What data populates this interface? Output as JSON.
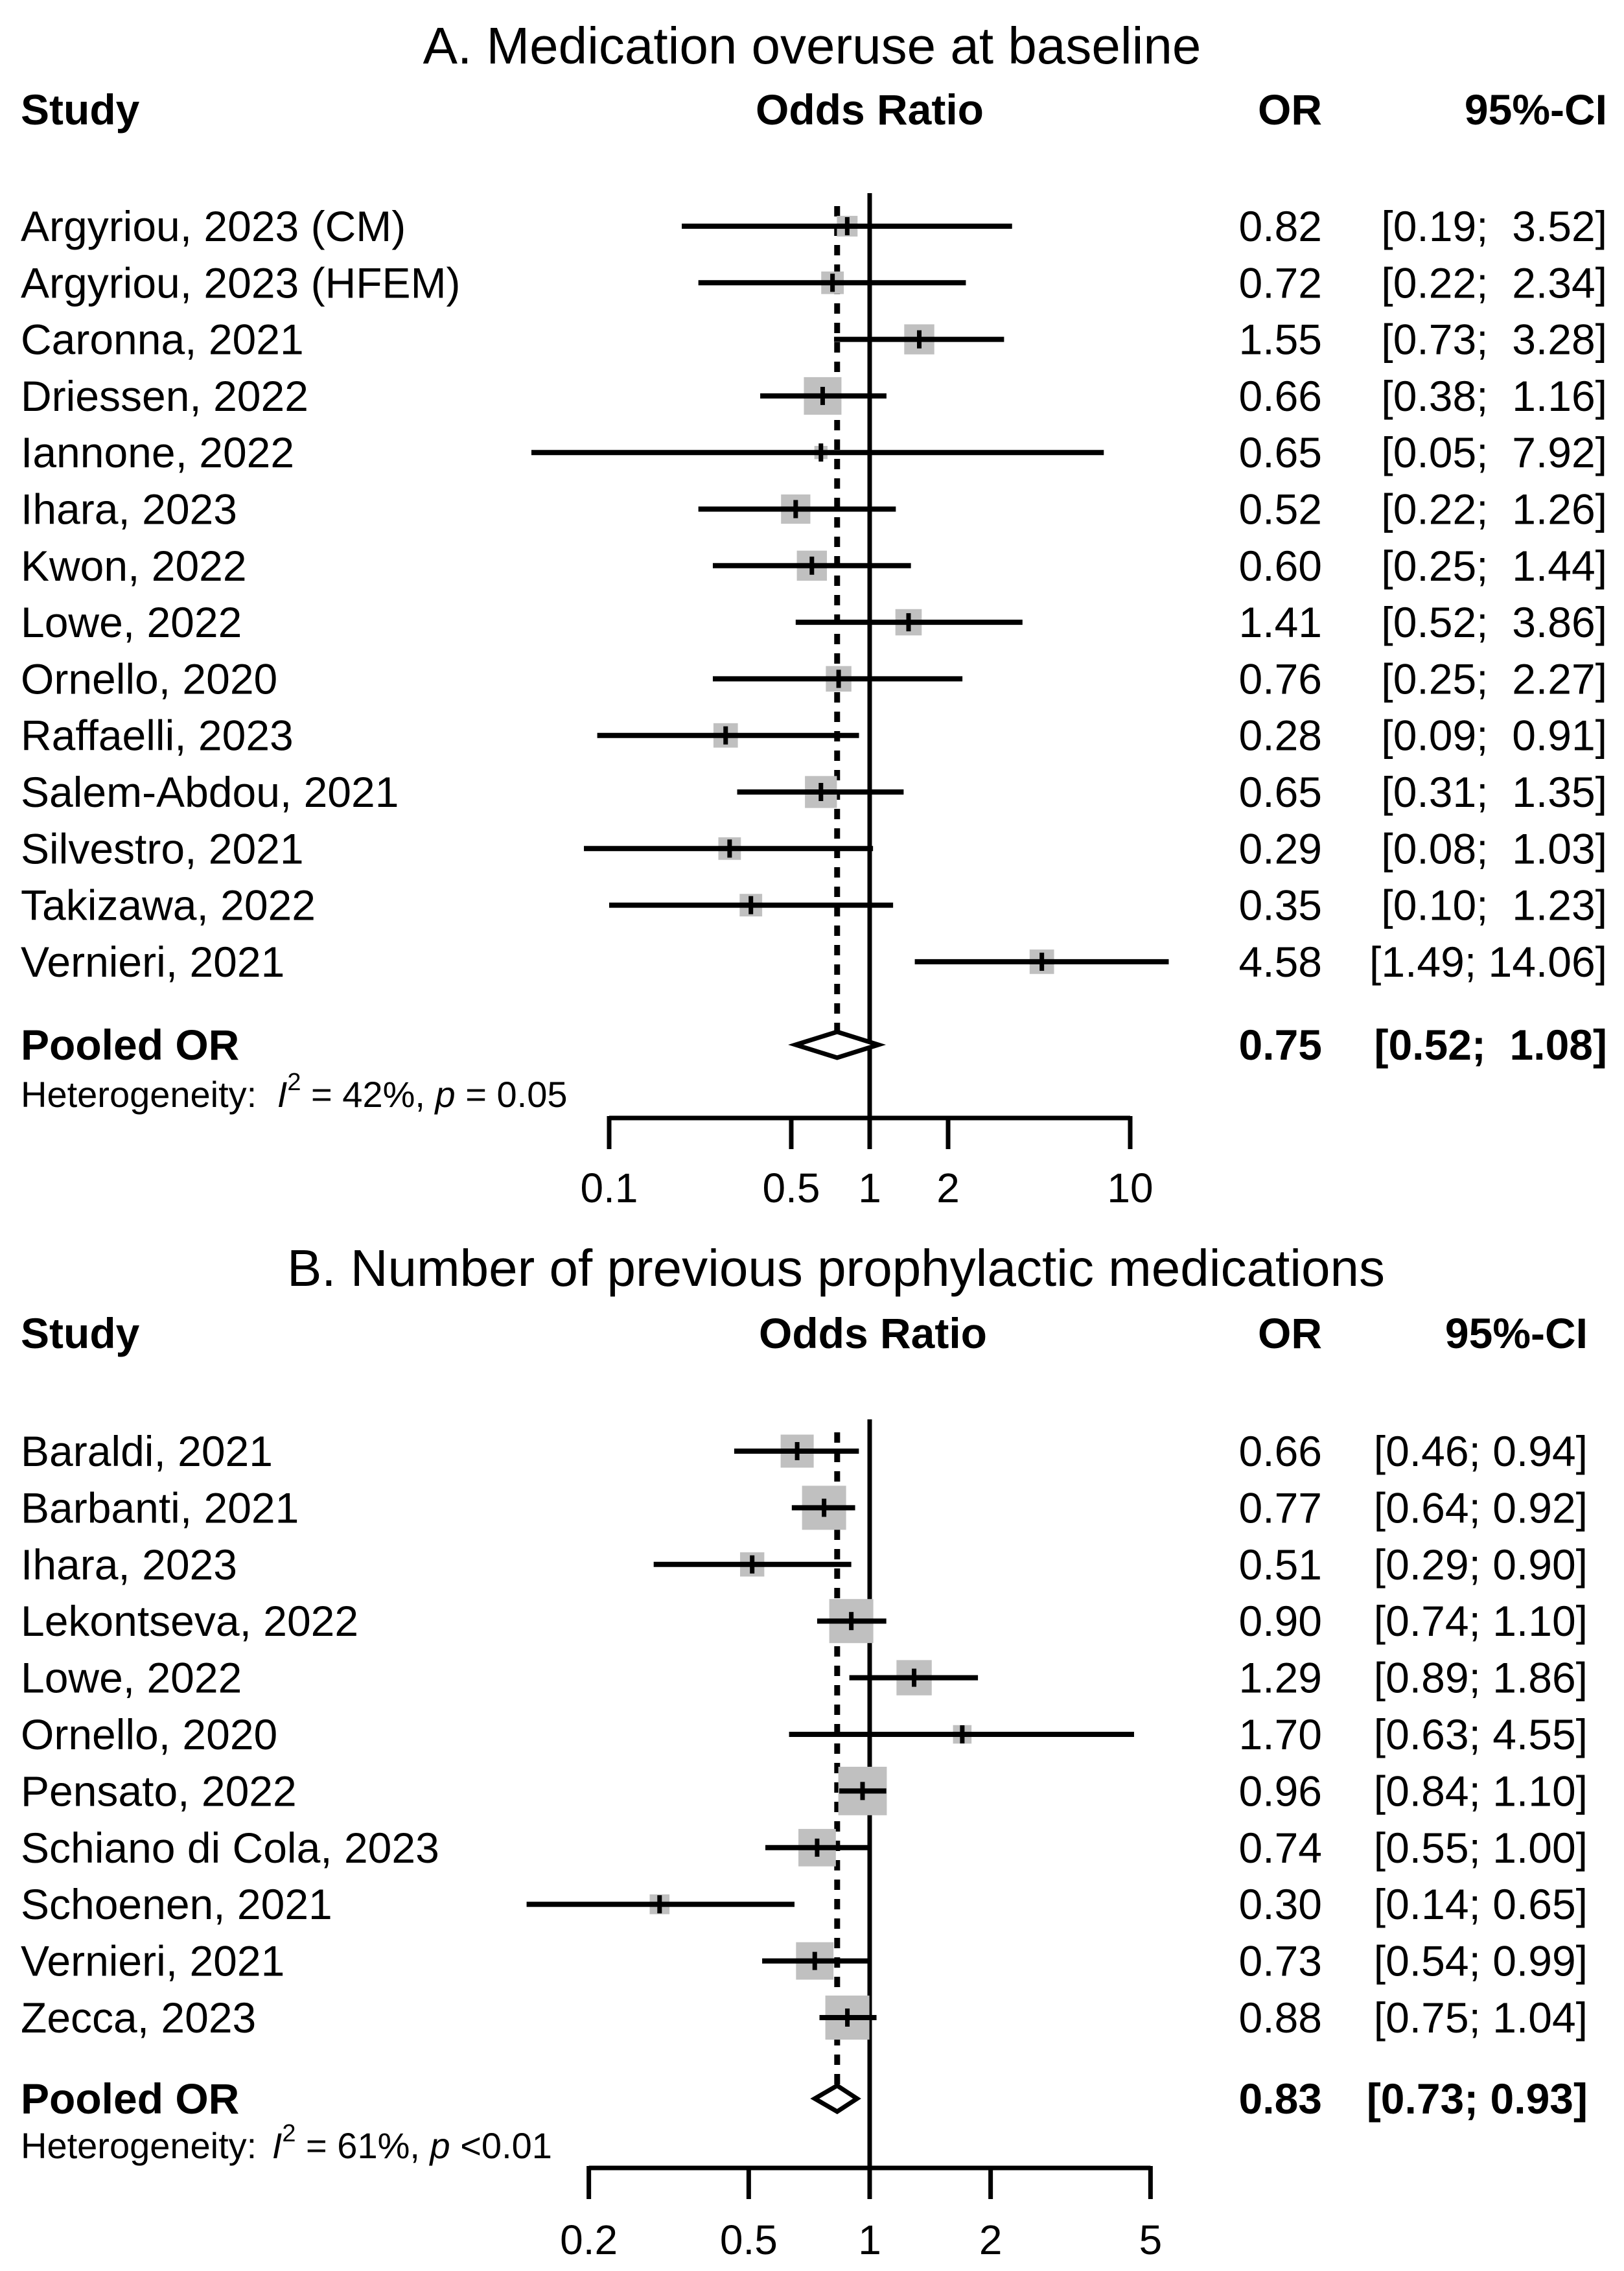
{
  "chart_data": [
    {
      "type": "forest",
      "title": "A. Medication overuse at baseline",
      "headers": {
        "study": "Study",
        "plot": "Odds Ratio",
        "or": "OR",
        "ci": "95%-CI"
      },
      "studies": [
        {
          "label": "Argyriou, 2023 (CM)",
          "or": 0.82,
          "lo": 0.19,
          "hi": 3.52,
          "or_text": "0.82",
          "ci_text": "[0.19;  3.52]",
          "weight": 0.55
        },
        {
          "label": "Argyriou, 2023 (HFEM)",
          "or": 0.72,
          "lo": 0.22,
          "hi": 2.34,
          "or_text": "0.72",
          "ci_text": "[0.22;  2.34]",
          "weight": 0.6
        },
        {
          "label": "Caronna, 2021",
          "or": 1.55,
          "lo": 0.73,
          "hi": 3.28,
          "or_text": "1.55",
          "ci_text": "[0.73;  3.28]",
          "weight": 0.8
        },
        {
          "label": "Driessen, 2022",
          "or": 0.66,
          "lo": 0.38,
          "hi": 1.16,
          "or_text": "0.66",
          "ci_text": "[0.38;  1.16]",
          "weight": 1.0
        },
        {
          "label": "Iannone, 2022",
          "or": 0.65,
          "lo": 0.05,
          "hi": 7.92,
          "or_text": "0.65",
          "ci_text": "[0.05;  7.92]",
          "weight": 0.35
        },
        {
          "label": "Ihara, 2023",
          "or": 0.52,
          "lo": 0.22,
          "hi": 1.26,
          "or_text": "0.52",
          "ci_text": "[0.22;  1.26]",
          "weight": 0.78
        },
        {
          "label": "Kwon, 2022",
          "or": 0.6,
          "lo": 0.25,
          "hi": 1.44,
          "or_text": "0.60",
          "ci_text": "[0.25;  1.44]",
          "weight": 0.8
        },
        {
          "label": "Lowe, 2022",
          "or": 1.41,
          "lo": 0.52,
          "hi": 3.86,
          "or_text": "1.41",
          "ci_text": "[0.52;  3.86]",
          "weight": 0.7
        },
        {
          "label": "Ornello, 2020",
          "or": 0.76,
          "lo": 0.25,
          "hi": 2.27,
          "or_text": "0.76",
          "ci_text": "[0.25;  2.27]",
          "weight": 0.68
        },
        {
          "label": "Raffaelli, 2023",
          "or": 0.28,
          "lo": 0.09,
          "hi": 0.91,
          "or_text": "0.28",
          "ci_text": "[0.09;  0.91]",
          "weight": 0.65
        },
        {
          "label": "Salem-Abdou, 2021",
          "or": 0.65,
          "lo": 0.31,
          "hi": 1.35,
          "or_text": "0.65",
          "ci_text": "[0.31;  1.35]",
          "weight": 0.85
        },
        {
          "label": "Silvestro, 2021",
          "or": 0.29,
          "lo": 0.08,
          "hi": 1.03,
          "or_text": "0.29",
          "ci_text": "[0.08;  1.03]",
          "weight": 0.6
        },
        {
          "label": "Takizawa, 2022",
          "or": 0.35,
          "lo": 0.1,
          "hi": 1.23,
          "or_text": "0.35",
          "ci_text": "[0.10;  1.23]",
          "weight": 0.6
        },
        {
          "label": "Vernieri, 2021",
          "or": 4.58,
          "lo": 1.49,
          "hi": 14.06,
          "or_text": "4.58",
          "ci_text": "[1.49; 14.06]",
          "weight": 0.65
        }
      ],
      "pooled": {
        "label": "Pooled OR",
        "or": 0.75,
        "lo": 0.52,
        "hi": 1.08,
        "or_text": "0.75",
        "ci_text": "[0.52;  1.08]"
      },
      "heterogeneity": {
        "prefix": "Heterogeneity:",
        "i2_symbol": "I",
        "i2_sup": "2",
        "i2_value": " = 42%, ",
        "p_symbol": "p",
        "p_value": " = 0.05"
      },
      "axis": {
        "scale": "log",
        "min": 0.1,
        "max": 10,
        "ticks": [
          0.1,
          0.5,
          1,
          2,
          10
        ],
        "tick_labels": [
          "0.1",
          "0.5",
          "1",
          "2",
          "10"
        ]
      }
    },
    {
      "type": "forest",
      "title": "B. Number of previous prophylactic medications",
      "headers": {
        "study": "Study",
        "plot": "Odds Ratio",
        "or": "OR",
        "ci": "95%-CI"
      },
      "studies": [
        {
          "label": "Baraldi, 2021",
          "or": 0.66,
          "lo": 0.46,
          "hi": 0.94,
          "or_text": "0.66",
          "ci_text": "[0.46; 0.94]",
          "weight": 0.75
        },
        {
          "label": "Barbanti, 2021",
          "or": 0.77,
          "lo": 0.64,
          "hi": 0.92,
          "or_text": "0.77",
          "ci_text": "[0.64; 0.92]",
          "weight": 1.0
        },
        {
          "label": "Ihara, 2023",
          "or": 0.51,
          "lo": 0.29,
          "hi": 0.9,
          "or_text": "0.51",
          "ci_text": "[0.29; 0.90]",
          "weight": 0.55
        },
        {
          "label": "Lekontseva, 2022",
          "or": 0.9,
          "lo": 0.74,
          "hi": 1.1,
          "or_text": "0.90",
          "ci_text": "[0.74; 1.10]",
          "weight": 1.0
        },
        {
          "label": "Lowe, 2022",
          "or": 1.29,
          "lo": 0.89,
          "hi": 1.86,
          "or_text": "1.29",
          "ci_text": "[0.89; 1.86]",
          "weight": 0.8
        },
        {
          "label": "Ornello, 2020",
          "or": 1.7,
          "lo": 0.63,
          "hi": 4.55,
          "or_text": "1.70",
          "ci_text": "[0.63; 4.55]",
          "weight": 0.42
        },
        {
          "label": "Pensato, 2022",
          "or": 0.96,
          "lo": 0.84,
          "hi": 1.1,
          "or_text": "0.96",
          "ci_text": "[0.84; 1.10]",
          "weight": 1.1
        },
        {
          "label": "Schiano di Cola, 2023",
          "or": 0.74,
          "lo": 0.55,
          "hi": 1.0,
          "or_text": "0.74",
          "ci_text": "[0.55; 1.00]",
          "weight": 0.85
        },
        {
          "label": "Schoenen, 2021",
          "or": 0.3,
          "lo": 0.14,
          "hi": 0.65,
          "or_text": "0.30",
          "ci_text": "[0.14; 0.65]",
          "weight": 0.45
        },
        {
          "label": "Vernieri, 2021",
          "or": 0.73,
          "lo": 0.54,
          "hi": 0.99,
          "or_text": "0.73",
          "ci_text": "[0.54; 0.99]",
          "weight": 0.85
        },
        {
          "label": "Zecca, 2023",
          "or": 0.88,
          "lo": 0.75,
          "hi": 1.04,
          "or_text": "0.88",
          "ci_text": "[0.75; 1.04]",
          "weight": 1.0
        }
      ],
      "pooled": {
        "label": "Pooled OR",
        "or": 0.83,
        "lo": 0.73,
        "hi": 0.93,
        "or_text": "0.83",
        "ci_text": "[0.73; 0.93]"
      },
      "heterogeneity": {
        "prefix": "Heterogeneity:",
        "i2_symbol": "I",
        "i2_sup": "2",
        "i2_value": " = 61%, ",
        "p_symbol": "p",
        "p_value": " <0.01"
      },
      "axis": {
        "scale": "log",
        "min": 0.2,
        "max": 5,
        "ticks": [
          0.2,
          0.5,
          1,
          2,
          5
        ],
        "tick_labels": [
          "0.2",
          "0.5",
          "1",
          "2",
          "5"
        ]
      }
    }
  ]
}
